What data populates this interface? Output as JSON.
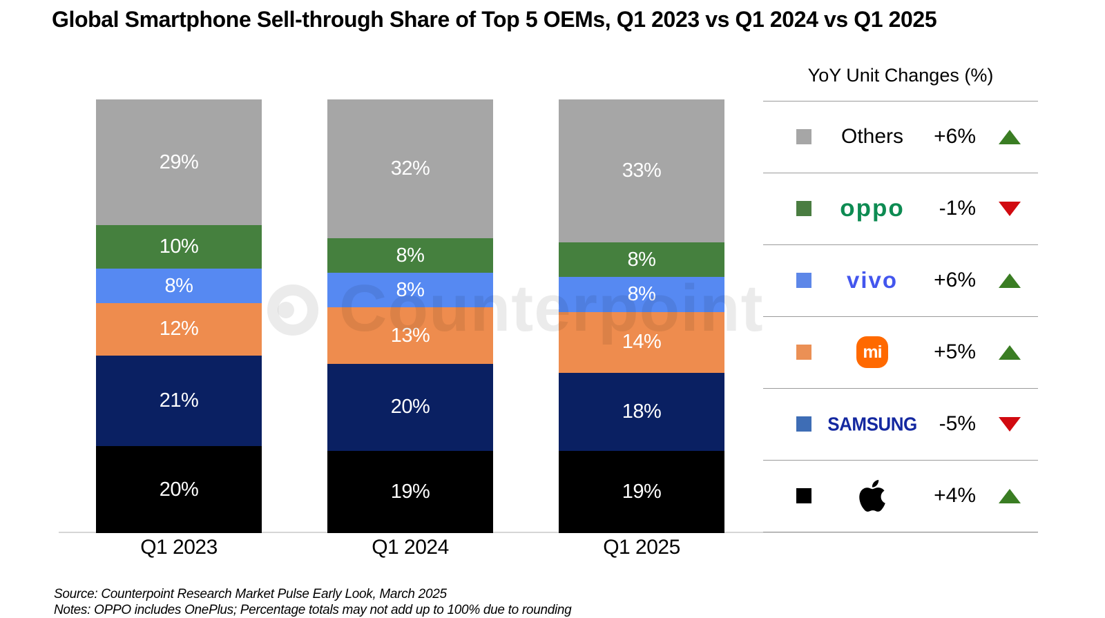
{
  "title": "Global Smartphone Sell-through Share of Top 5 OEMs, Q1 2023 vs Q1 2024 vs Q1 2025",
  "watermark_text": "Counterpoint",
  "legend_title": "YoY Unit Changes (%)",
  "source_line": "Source: Counterpoint Research Market Pulse Early Look, March 2025",
  "notes_line": "Notes: OPPO includes OnePlus; Percentage totals may not add up to 100% due to rounding",
  "colors": {
    "trend_up": "#3a7d23",
    "trend_down": "#d10a10",
    "baseline": "#d6d6d6",
    "divider": "#9a9a9a",
    "watermark": "rgba(0,0,0,0.08)",
    "oppo_logo": "#0d8b52",
    "vivo_logo": "#4356ee",
    "samsung_logo": "#1428a0",
    "xiaomi_logo_bg": "#ff6900"
  },
  "chart_data": {
    "type": "bar",
    "stacked": true,
    "orientation": "vertical",
    "title": "Global Smartphone Sell-through Share of Top 5 OEMs, Q1 2023 vs Q1 2024 vs Q1 2025",
    "categories": [
      "Q1 2023",
      "Q1 2024",
      "Q1 2025"
    ],
    "value_suffix": "%",
    "ylim": [
      0,
      100
    ],
    "grid": false,
    "legend_position": "right",
    "legend_title": "YoY Unit Changes (%)",
    "series_order_note": "listed top-to-bottom as stacked in each bar",
    "series": [
      {
        "name": "Others",
        "values": [
          29,
          32,
          33
        ],
        "bar_color": "#a6a6a6",
        "legend_swatch": "#a6a6a6",
        "yoy_change": "+6%",
        "trend": "up",
        "logo": {
          "type": "text",
          "text": "Others",
          "class": "plain"
        }
      },
      {
        "name": "OPPO",
        "values": [
          10,
          8,
          8
        ],
        "bar_color": "#45803e",
        "legend_swatch": "#4a7d41",
        "yoy_change": "-1%",
        "trend": "down",
        "logo": {
          "type": "text",
          "text": "oppo",
          "class": "oppo"
        }
      },
      {
        "name": "vivo",
        "values": [
          8,
          8,
          8
        ],
        "bar_color": "#5689f2",
        "legend_swatch": "#5d87e8",
        "yoy_change": "+6%",
        "trend": "up",
        "logo": {
          "type": "text",
          "text": "vivo",
          "class": "vivo"
        }
      },
      {
        "name": "Xiaomi",
        "values": [
          12,
          13,
          14
        ],
        "bar_color": "#ee8c4e",
        "legend_swatch": "#eb9055",
        "yoy_change": "+5%",
        "trend": "up",
        "logo": {
          "type": "squircle",
          "text": "mi"
        }
      },
      {
        "name": "Samsung",
        "values": [
          21,
          20,
          18
        ],
        "bar_color": "#0a2062",
        "legend_swatch": "#3e6db5",
        "yoy_change": "-5%",
        "trend": "down",
        "logo": {
          "type": "text",
          "text": "SAMSUNG",
          "class": "samsung"
        }
      },
      {
        "name": "Apple",
        "values": [
          20,
          19,
          19
        ],
        "bar_color": "#000000",
        "legend_swatch": "#000000",
        "yoy_change": "+4%",
        "trend": "up",
        "logo": {
          "type": "apple"
        }
      }
    ]
  }
}
